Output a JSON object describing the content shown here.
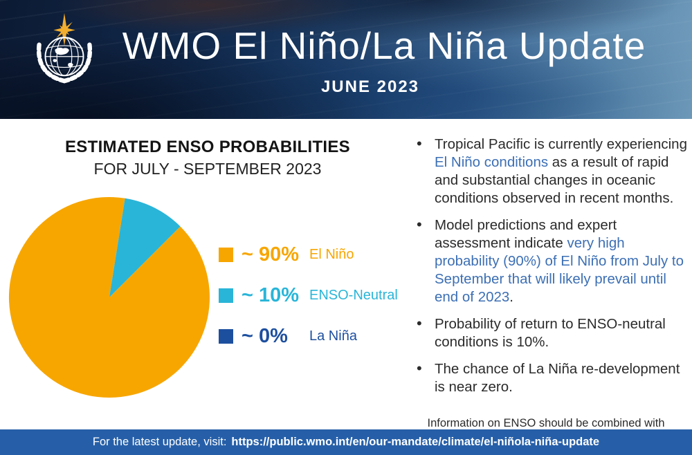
{
  "header": {
    "title": "WMO El Niño/La Niña Update",
    "date": "JUNE 2023",
    "logo": "wmo-logo"
  },
  "chart_data": {
    "type": "pie",
    "title": "ESTIMATED ENSO PROBABILITIES",
    "subtitle": "FOR JULY - SEPTEMBER 2023",
    "categories": [
      "El Niño",
      "ENSO-Neutral",
      "La Niña"
    ],
    "values": [
      90,
      10,
      0
    ],
    "labels": [
      "~ 90%",
      "~ 10%",
      "~ 0%"
    ],
    "colors": [
      "#F7A600",
      "#29B5D8",
      "#1D4F9F"
    ],
    "start_angle_deg": 45,
    "legend_position": "right"
  },
  "right_column": {
    "bullets": [
      [
        {
          "text": "Tropical Pacific is currently experiencing ",
          "style": "text"
        },
        {
          "text": "El Niño conditions",
          "style": "link"
        },
        {
          "text": " as a result of rapid and substantial changes in oceanic conditions observed in recent months.",
          "style": "text"
        }
      ],
      [
        {
          "text": "Model predictions and expert assessment indicate ",
          "style": "text"
        },
        {
          "text": "very high probability (90%) of El Niño from July to September that will likely prevail until end of 2023",
          "style": "link"
        },
        {
          "text": ".",
          "style": "text"
        }
      ],
      [
        {
          "text": "Probability of return to ENSO-neutral conditions is 10%.",
          "style": "text"
        }
      ],
      [
        {
          "text": "The chance of La Niña re-development is near zero.",
          "style": "text"
        }
      ]
    ],
    "footnote": "Information on ENSO should be combined with other regionally and locally relevant factors in order to anticipate its effects on regional climates."
  },
  "footer": {
    "prefix": "For the latest update, visit:",
    "url": "https://public.wmo.int/en/our-mandate/climate/el-niñola-niña-update"
  },
  "colors": {
    "accent_orange": "#F7A600",
    "accent_cyan": "#29B5D8",
    "accent_navy": "#1D4F9F",
    "link_blue": "#3C6FB4",
    "footer_bg": "#265FA8",
    "body_text": "#2B2B2B",
    "star_gold": "#F2AE2E"
  }
}
